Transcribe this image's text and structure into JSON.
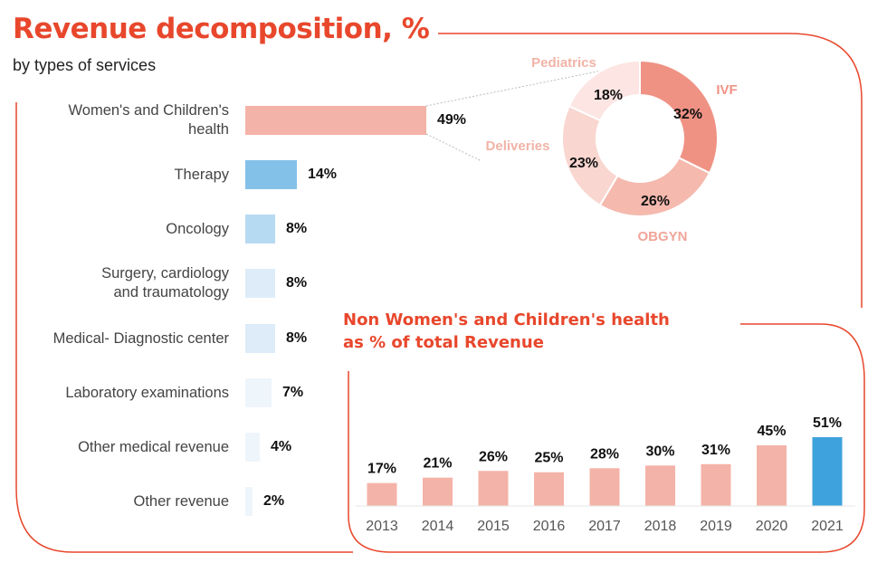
{
  "title": "Revenue decomposition, %",
  "subtitle": "by types of services",
  "colors": {
    "accent": "#e8472c",
    "womens": "#f4b3a8",
    "therapy": "#83c1e8",
    "oncology": "#b6daf1",
    "light_blue": "#ddecf8",
    "lightest_blue": "#eef5fb",
    "year_bar": "#f4b3a8",
    "year_highlight": "#3ea2dd",
    "ivf": "#ef9284",
    "obgyn": "#f5b9ae",
    "deliveries": "#f9d6d0",
    "pediatrics": "#fce5e2"
  },
  "chart_data": [
    {
      "type": "bar",
      "orientation": "horizontal",
      "categories": [
        "Women's and Children's health",
        "Therapy",
        "Oncology",
        "Surgery, cardiology and traumatology",
        "Medical- Diagnostic center",
        "Laboratory examinations",
        "Other medical revenue",
        "Other revenue"
      ],
      "values": [
        49,
        14,
        8,
        8,
        8,
        7,
        4,
        2
      ],
      "value_labels": [
        "49%",
        "14%",
        "8%",
        "8%",
        "8%",
        "7%",
        "4%",
        "2%"
      ]
    },
    {
      "type": "pie",
      "donut": true,
      "categories": [
        "IVF",
        "OBGYN",
        "Deliveries",
        "Pediatrics"
      ],
      "values": [
        32,
        26,
        23,
        18
      ],
      "value_labels": [
        "32%",
        "26%",
        "23%",
        "18%"
      ]
    },
    {
      "type": "bar",
      "title": "Non Women's and Children's health as % of total Revenue",
      "title_lines": [
        "Non Women's and Children's health",
        "as % of total Revenue"
      ],
      "categories": [
        "2013",
        "2014",
        "2015",
        "2016",
        "2017",
        "2018",
        "2019",
        "2020",
        "2021"
      ],
      "values": [
        17,
        21,
        26,
        25,
        28,
        30,
        31,
        45,
        51
      ],
      "value_labels": [
        "17%",
        "21%",
        "26%",
        "25%",
        "28%",
        "30%",
        "31%",
        "45%",
        "51%"
      ],
      "highlight": "2021"
    }
  ]
}
